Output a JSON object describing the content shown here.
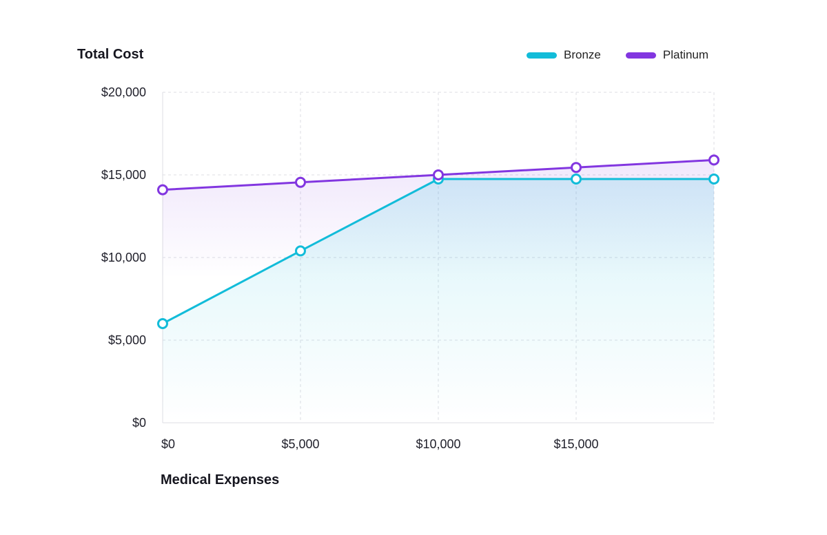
{
  "chart_data": {
    "type": "line",
    "ylabel": "Total Cost",
    "xlabel": "Medical Expenses",
    "x": [
      0,
      5000,
      10000,
      15000,
      20000
    ],
    "x_tick_values": [
      0,
      5000,
      10000,
      15000
    ],
    "x_tick_labels": [
      "$0",
      "$5,000",
      "$10,000",
      "$15,000"
    ],
    "y_tick_values": [
      0,
      5000,
      10000,
      15000,
      20000
    ],
    "y_tick_labels": [
      "$0",
      "$5,000",
      "$10,000",
      "$15,000",
      "$20,000"
    ],
    "xlim": [
      0,
      20000
    ],
    "ylim": [
      0,
      20000
    ],
    "grid": true,
    "legend_position": "top-right",
    "series": [
      {
        "name": "Bronze",
        "color": "#12bcd9",
        "values": [
          6000,
          10400,
          14750,
          14750,
          14750
        ]
      },
      {
        "name": "Platinum",
        "color": "#8236e0",
        "values": [
          14100,
          14550,
          15000,
          15450,
          15900
        ]
      }
    ]
  }
}
